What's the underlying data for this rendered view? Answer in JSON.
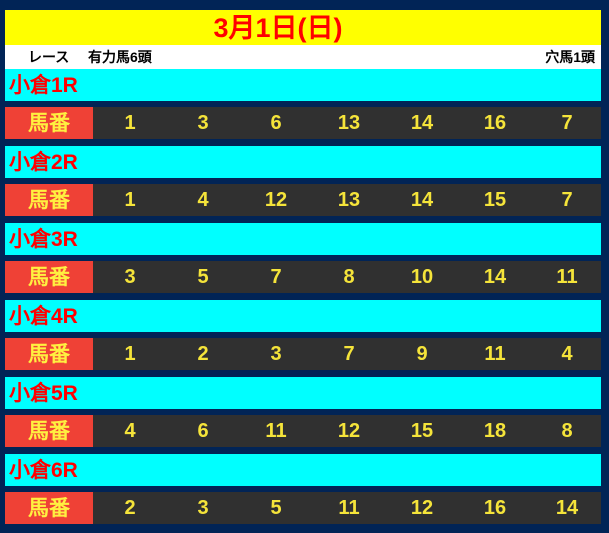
{
  "header": {
    "title": "3月1日(日)",
    "col_race": "レース",
    "col_main": "有力馬6頭",
    "col_dark": "穴馬1頭"
  },
  "row_label": "馬番",
  "races": [
    {
      "name": "小倉1R",
      "numbers": [
        "1",
        "3",
        "6",
        "13",
        "14",
        "16",
        "7"
      ]
    },
    {
      "name": "小倉2R",
      "numbers": [
        "1",
        "4",
        "12",
        "13",
        "14",
        "15",
        "7"
      ]
    },
    {
      "name": "小倉3R",
      "numbers": [
        "3",
        "5",
        "7",
        "8",
        "10",
        "14",
        "11"
      ]
    },
    {
      "name": "小倉4R",
      "numbers": [
        "1",
        "2",
        "3",
        "7",
        "9",
        "11",
        "4"
      ]
    },
    {
      "name": "小倉5R",
      "numbers": [
        "4",
        "6",
        "11",
        "12",
        "15",
        "18",
        "8"
      ]
    },
    {
      "name": "小倉6R",
      "numbers": [
        "2",
        "3",
        "5",
        "11",
        "12",
        "16",
        "14"
      ]
    }
  ]
}
